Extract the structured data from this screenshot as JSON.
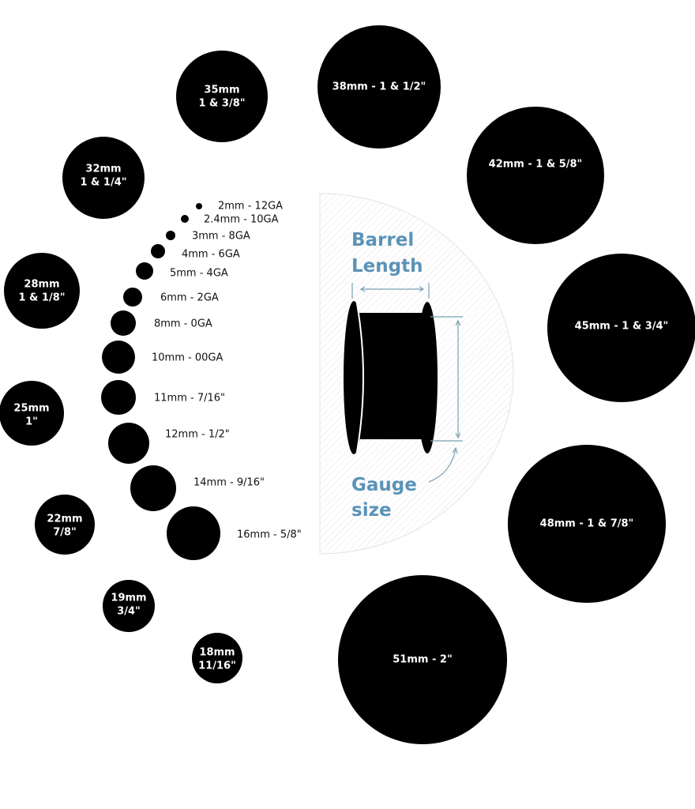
{
  "large_sizes": [
    {
      "mm": "35mm",
      "inch": "1 & 3/8\""
    },
    {
      "label": "38mm - 1 & 1/2\""
    },
    {
      "label": "42mm - 1 & 5/8\""
    },
    {
      "label": "45mm - 1 & 3/4\""
    },
    {
      "label": "48mm - 1 & 7/8\""
    },
    {
      "label": "51mm - 2\""
    },
    {
      "mm": "32mm",
      "inch": "1 & 1/4\""
    },
    {
      "mm": "28mm",
      "inch": "1 & 1/8\""
    },
    {
      "mm": "25mm",
      "inch": "1\""
    },
    {
      "mm": "22mm",
      "inch": "7/8\""
    },
    {
      "mm": "19mm",
      "inch": "3/4\""
    },
    {
      "mm": "18mm",
      "inch": "11/16\""
    }
  ],
  "small_sizes": [
    "2mm - 12GA",
    "2.4mm - 10GA",
    "3mm - 8GA",
    "4mm - 6GA",
    "5mm - 4GA",
    "6mm - 2GA",
    "8mm - 0GA",
    "10mm - 00GA",
    "11mm - 7/16\"",
    "12mm - 1/2\"",
    "14mm - 9/16\"",
    "16mm - 5/8\""
  ],
  "diagram": {
    "barrel_line1": "Barrel",
    "barrel_line2": "Length",
    "gauge_line1": "Gauge",
    "gauge_line2": "size",
    "accent_color": "#5b93b8"
  }
}
